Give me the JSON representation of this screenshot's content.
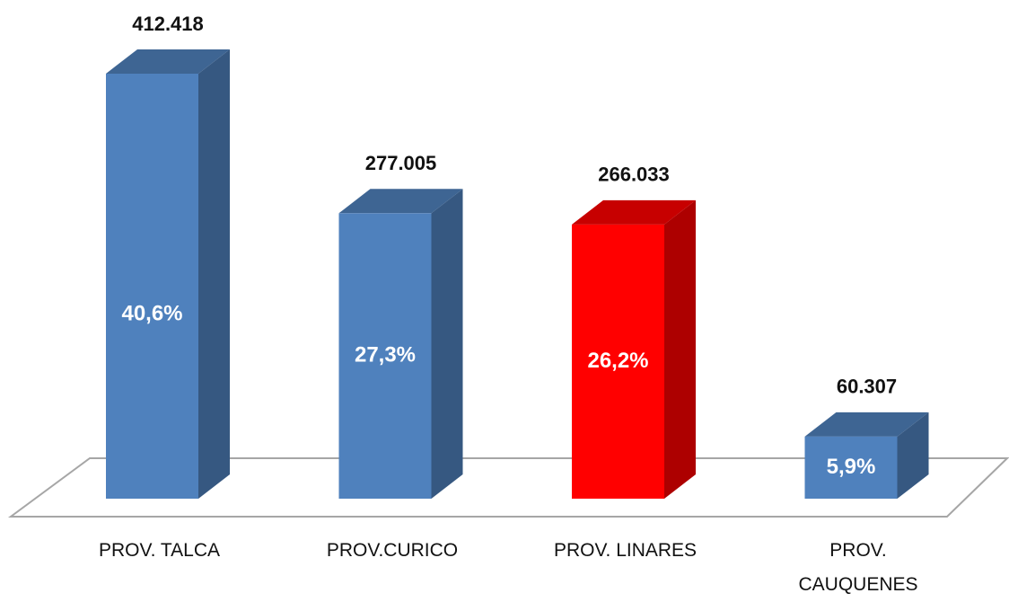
{
  "chart_data": {
    "type": "bar3d",
    "categories": [
      "PROV. TALCA",
      "PROV.CURICO",
      "PROV. LINARES",
      "PROV. CAUQUENES"
    ],
    "values": [
      412418,
      277005,
      266033,
      60307
    ],
    "value_labels": [
      "412.418",
      "277.005",
      "266.033",
      "60.307"
    ],
    "percentages": [
      40.6,
      27.3,
      26.2,
      5.9
    ],
    "percentage_labels": [
      "40,6%",
      "27,3%",
      "26,2%",
      "5,9%"
    ],
    "colors": [
      "#4f81bd",
      "#4f81bd",
      "#ff0000",
      "#4f81bd"
    ]
  }
}
